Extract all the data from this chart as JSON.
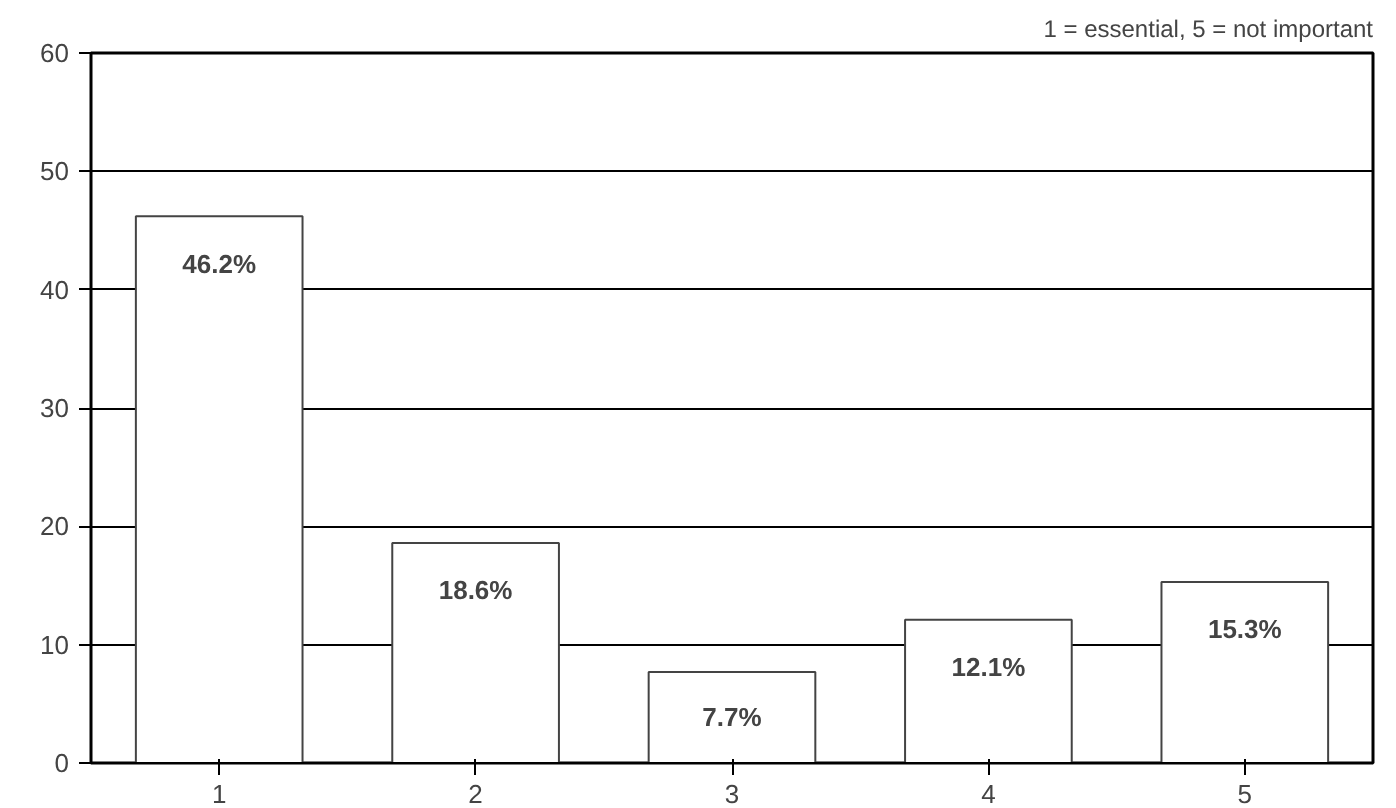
{
  "chart_data": {
    "type": "bar",
    "subtitle": "1 = essential, 5 = not important",
    "categories": [
      "1",
      "2",
      "3",
      "4",
      "5"
    ],
    "values": [
      46.2,
      18.6,
      7.7,
      12.1,
      15.3
    ],
    "value_labels": [
      "46.2%",
      "18.6%",
      "7.7%",
      "12.1%",
      "15.3%"
    ],
    "color": "#ffffff",
    "ylim": [
      0,
      60
    ],
    "yticks": [
      0,
      10,
      20,
      30,
      40,
      50,
      60
    ],
    "grid": "y"
  }
}
